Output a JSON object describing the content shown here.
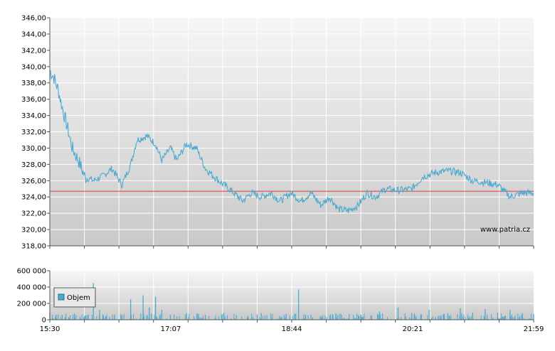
{
  "watermark": "www.patria.cz",
  "legend": {
    "label": "Objem"
  },
  "colors": {
    "price_line": "#4aaad0",
    "reference_line": "#e0474c",
    "volume_bar": "#4aaad0",
    "plot_bg_top": "#f6f6f6",
    "plot_bg_bottom": "#c9c9c9",
    "grid": "#ffffff",
    "axis": "#555555"
  },
  "chart_data": [
    {
      "type": "line",
      "title": "",
      "xlabel": "",
      "ylabel": "",
      "ylim": [
        318,
        346
      ],
      "yticks": [
        "318,00",
        "320,00",
        "322,00",
        "324,00",
        "326,00",
        "328,00",
        "330,00",
        "332,00",
        "334,00",
        "336,00",
        "338,00",
        "340,00",
        "342,00",
        "344,00",
        "346,00"
      ],
      "xlim": [
        "15:30",
        "21:59"
      ],
      "reference_value": 324.7,
      "grid": true,
      "series": [
        {
          "x": [
            "15:30",
            "15:33",
            "15:37",
            "15:40",
            "15:45",
            "15:48",
            "15:53",
            "15:58",
            "16:05",
            "16:12",
            "16:20",
            "16:28",
            "16:35",
            "16:40",
            "16:48",
            "16:55",
            "17:00",
            "17:07",
            "17:12",
            "17:20",
            "17:28",
            "17:35",
            "17:42",
            "17:50",
            "17:58",
            "18:05",
            "18:12",
            "18:20",
            "18:28",
            "18:35",
            "18:44",
            "18:52",
            "19:00",
            "19:08",
            "19:15",
            "19:22",
            "19:30",
            "19:38",
            "19:45",
            "19:52",
            "20:00",
            "20:10",
            "20:21",
            "20:30",
            "20:40",
            "20:50",
            "21:00",
            "21:10",
            "21:20",
            "21:30",
            "21:40",
            "21:50",
            "21:59"
          ],
          "values": [
            339.5,
            338.8,
            337.0,
            335.0,
            332.0,
            330.0,
            328.5,
            326.5,
            326.0,
            326.5,
            327.5,
            325.5,
            328.0,
            331.0,
            331.5,
            330.5,
            328.5,
            330.0,
            328.5,
            330.5,
            330.0,
            327.5,
            326.5,
            325.5,
            324.5,
            323.5,
            324.5,
            324.0,
            324.5,
            323.5,
            324.5,
            323.5,
            324.5,
            323.0,
            324.0,
            322.5,
            322.3,
            323.0,
            324.5,
            324.0,
            325.0,
            324.8,
            325.0,
            326.5,
            327.0,
            327.2,
            327.0,
            326.0,
            325.8,
            325.5,
            324.0,
            324.5,
            324.5
          ]
        }
      ]
    },
    {
      "type": "bar",
      "title": "",
      "xlabel": "",
      "ylabel": "",
      "ylim": [
        0,
        600000
      ],
      "yticks": [
        "0",
        "200 000",
        "400 000",
        "600 000"
      ],
      "xticks": [
        "15:30",
        "17:07",
        "18:44",
        "20:21",
        "21:59"
      ],
      "grid": true,
      "series": [
        {
          "name": "Objem",
          "x": [
            "15:30",
            "15:35",
            "15:40",
            "15:50",
            "15:58",
            "16:00",
            "16:05",
            "16:10",
            "16:15",
            "16:22",
            "16:28",
            "16:35",
            "16:45",
            "16:50",
            "16:55",
            "17:00",
            "17:07",
            "17:20",
            "17:35",
            "17:50",
            "18:00",
            "18:20",
            "18:40",
            "18:50",
            "19:00",
            "19:20",
            "19:40",
            "19:55",
            "20:10",
            "20:21",
            "20:35",
            "20:50",
            "21:00",
            "21:10",
            "21:20",
            "21:30",
            "21:40",
            "21:50",
            "21:59"
          ],
          "values": [
            80000,
            60000,
            60000,
            40000,
            50000,
            60000,
            450000,
            120000,
            40000,
            50000,
            60000,
            250000,
            300000,
            150000,
            280000,
            120000,
            60000,
            80000,
            60000,
            90000,
            60000,
            80000,
            70000,
            370000,
            60000,
            80000,
            60000,
            100000,
            150000,
            80000,
            120000,
            80000,
            140000,
            90000,
            130000,
            90000,
            120000,
            80000,
            70000
          ]
        }
      ]
    }
  ]
}
